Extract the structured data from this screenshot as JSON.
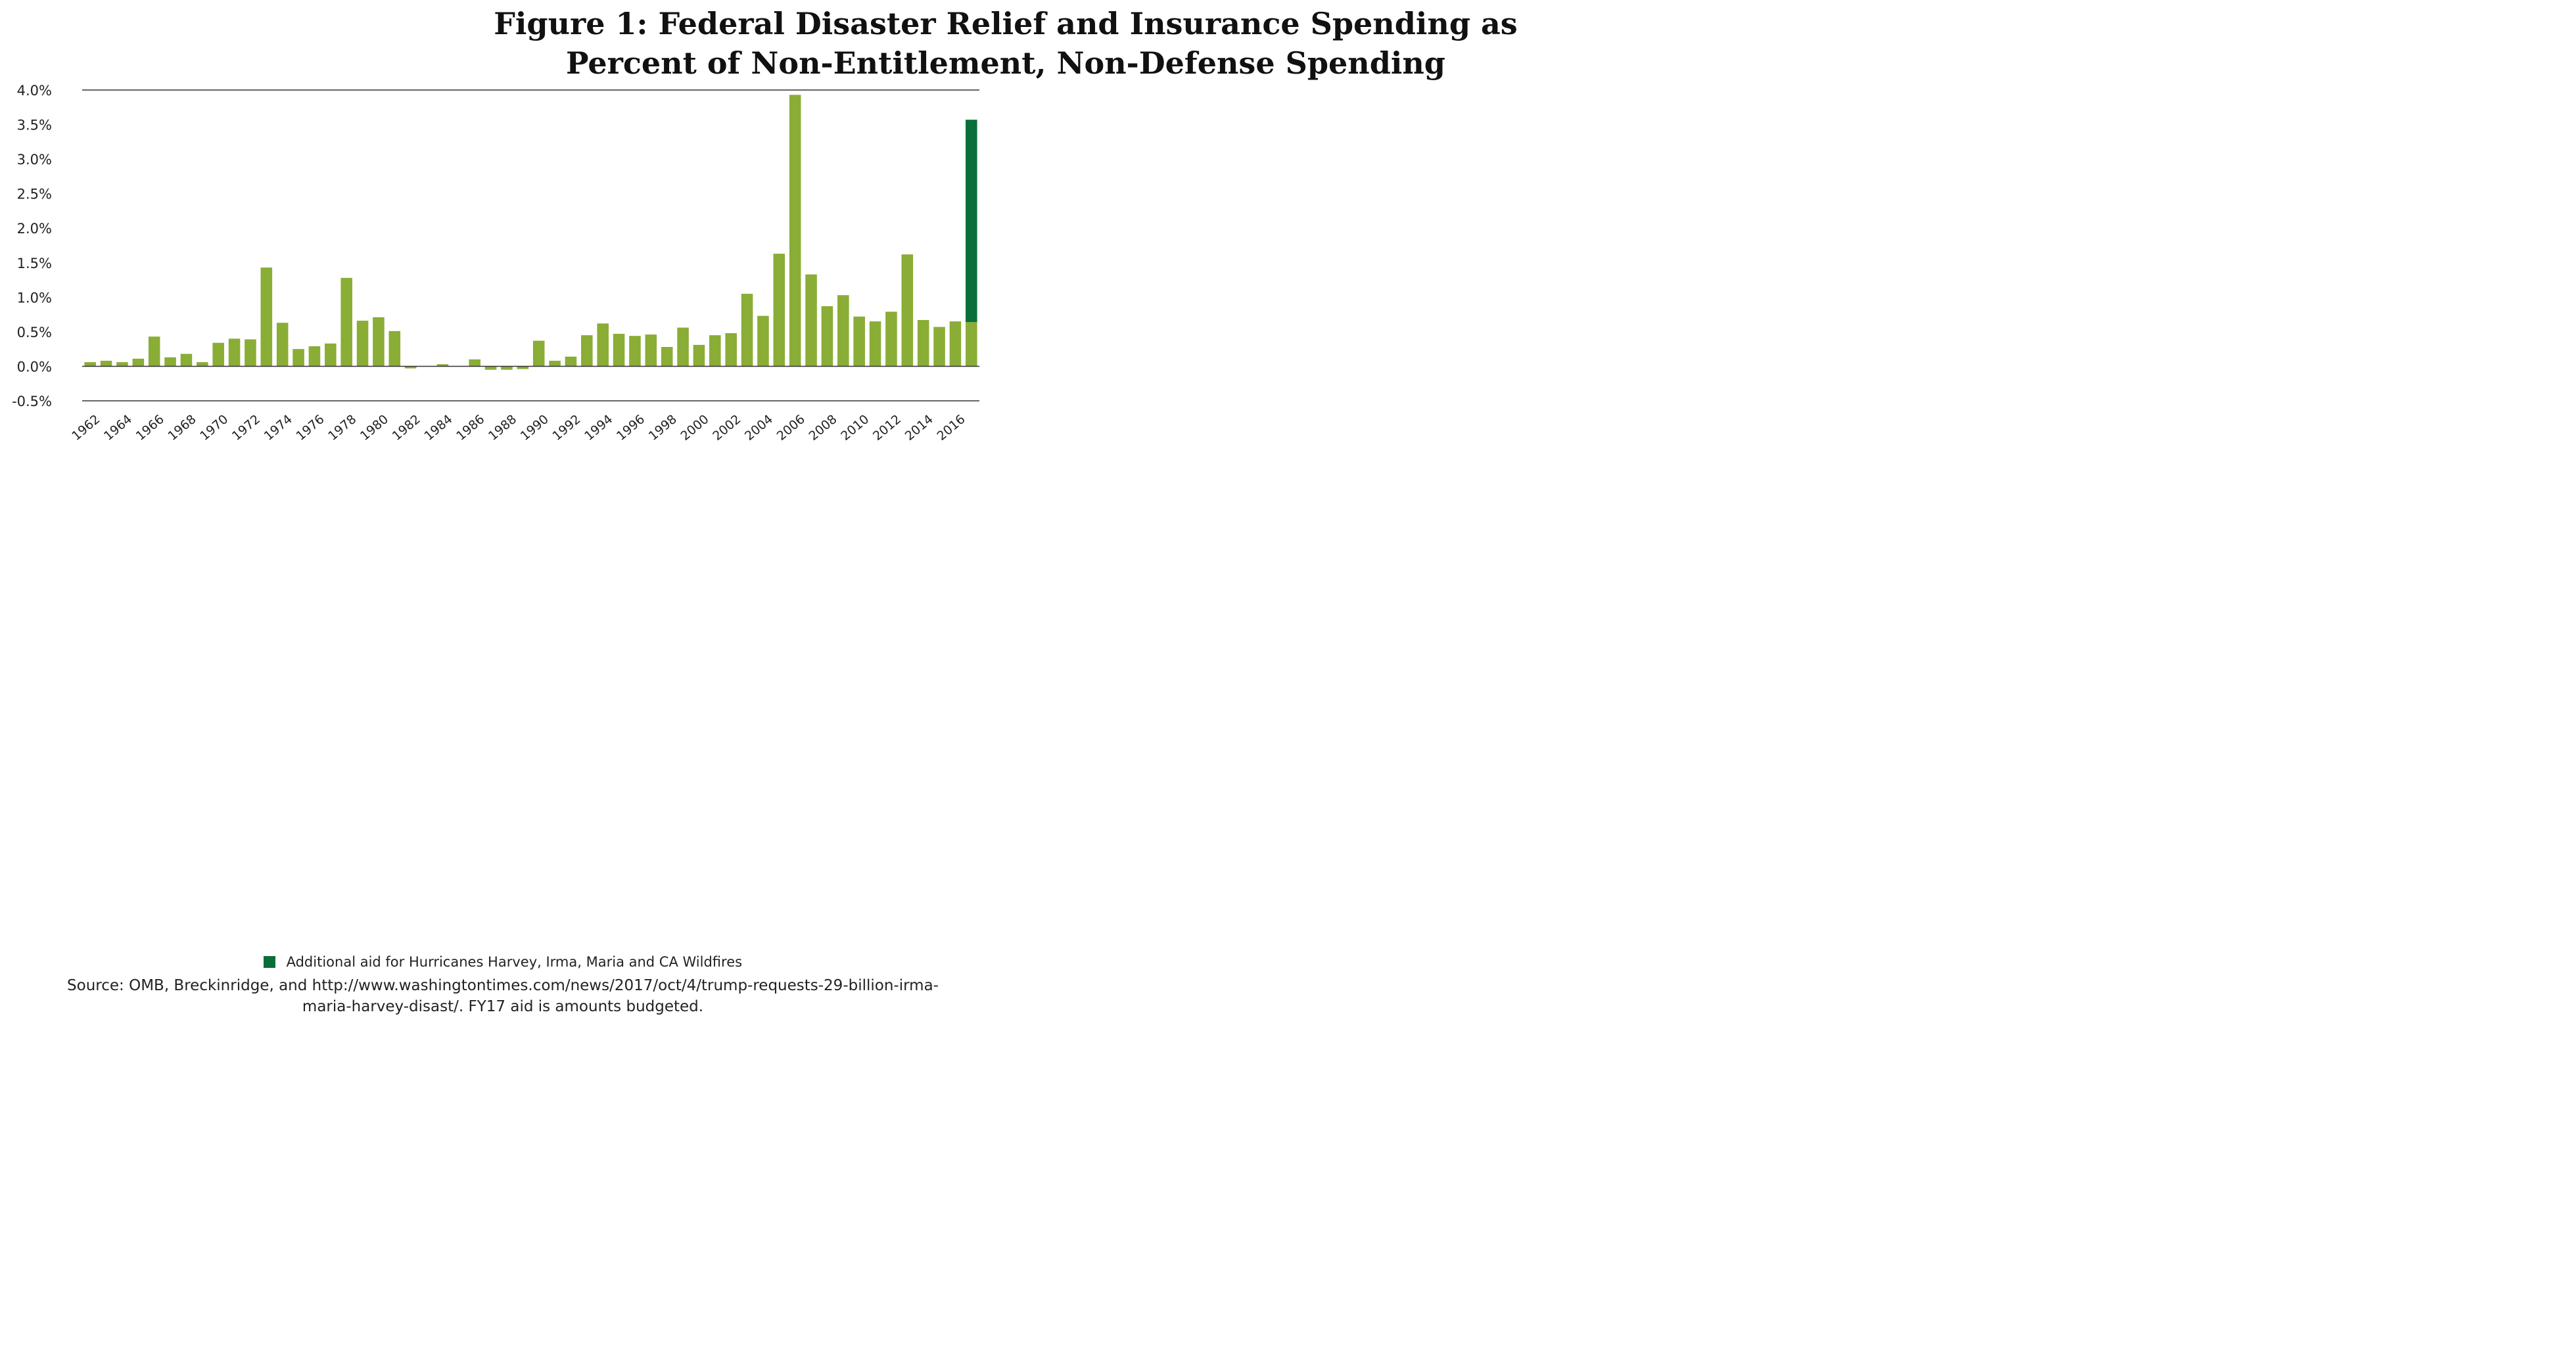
{
  "chart_data": {
    "type": "bar",
    "title_lines": [
      "Figure 1: Federal Disaster Relief and Insurance Spending as",
      "Percent of Non-Entitlement, Non-Defense Spending"
    ],
    "xlabel": "",
    "ylabel": "",
    "ylim": [
      -0.5,
      4.0
    ],
    "yticks": [
      4.0,
      3.5,
      3.0,
      2.5,
      2.0,
      1.5,
      1.0,
      0.5,
      0.0,
      -0.5
    ],
    "ytick_labels": [
      "4.0%",
      "3.5%",
      "3.0%",
      "2.5%",
      "2.0%",
      "1.5%",
      "1.0%",
      "0.5%",
      "0.0%",
      "-0.5%"
    ],
    "grid": "horizontal at 4.0% and -0.5%",
    "categories": [
      1962,
      1963,
      1964,
      1965,
      1966,
      1967,
      1968,
      1969,
      1970,
      1971,
      1972,
      1973,
      1974,
      1975,
      1976,
      1977,
      1978,
      1979,
      1980,
      1981,
      1982,
      1983,
      1984,
      1985,
      1986,
      1987,
      1988,
      1989,
      1990,
      1991,
      1992,
      1993,
      1994,
      1995,
      1996,
      1997,
      1998,
      1999,
      2000,
      2001,
      2002,
      2003,
      2004,
      2005,
      2006,
      2007,
      2008,
      2009,
      2010,
      2011,
      2012,
      2013,
      2014,
      2015,
      2016,
      2017
    ],
    "xtick_labels": [
      "1962",
      "1964",
      "1966",
      "1968",
      "1970",
      "1972",
      "1974",
      "1976",
      "1978",
      "1980",
      "1982",
      "1984",
      "1986",
      "1988",
      "1990",
      "1992",
      "1994",
      "1996",
      "1998",
      "2000",
      "2002",
      "2004",
      "2006",
      "2008",
      "2010",
      "2012",
      "2014",
      "2016"
    ],
    "series": [
      {
        "color": "#8aad35",
        "values": [
          0.06,
          0.08,
          0.06,
          0.11,
          0.43,
          0.13,
          0.18,
          0.06,
          0.34,
          0.4,
          0.39,
          1.43,
          0.63,
          0.25,
          0.29,
          0.33,
          1.28,
          0.66,
          0.71,
          0.51,
          -0.03,
          0.0,
          0.03,
          0.0,
          0.1,
          -0.05,
          -0.05,
          -0.04,
          0.37,
          0.08,
          0.14,
          0.45,
          0.62,
          0.47,
          0.44,
          0.46,
          0.28,
          0.56,
          0.31,
          0.45,
          0.48,
          1.05,
          0.73,
          1.63,
          3.93,
          1.33,
          0.87,
          1.03,
          0.72,
          0.65,
          0.79,
          1.62,
          0.67,
          0.57,
          0.65,
          0.64
        ]
      },
      {
        "name": "Additional aid for Hurricanes Harvey, Irma, Maria and CA Wildfires",
        "color": "#0a6e3a",
        "values": [
          0,
          0,
          0,
          0,
          0,
          0,
          0,
          0,
          0,
          0,
          0,
          0,
          0,
          0,
          0,
          0,
          0,
          0,
          0,
          0,
          0,
          0,
          0,
          0,
          0,
          0,
          0,
          0,
          0,
          0,
          0,
          0,
          0,
          0,
          0,
          0,
          0,
          0,
          0,
          0,
          0,
          0,
          0,
          0,
          0,
          0,
          0,
          0,
          0,
          0,
          0,
          0,
          0,
          0,
          0,
          2.93
        ]
      }
    ],
    "legend": {
      "label": "Additional aid for Hurricanes Harvey, Irma, Maria and CA Wildfires",
      "color": "#0a6e3a",
      "position": "bottom-center"
    }
  },
  "source_lines": [
    "Source: OMB, Breckinridge, and http://www.washingtontimes.com/news/2017/oct/4/trump-requests-29-billion-irma-",
    "maria-harvey-disast/. FY17 aid is amounts budgeted."
  ]
}
